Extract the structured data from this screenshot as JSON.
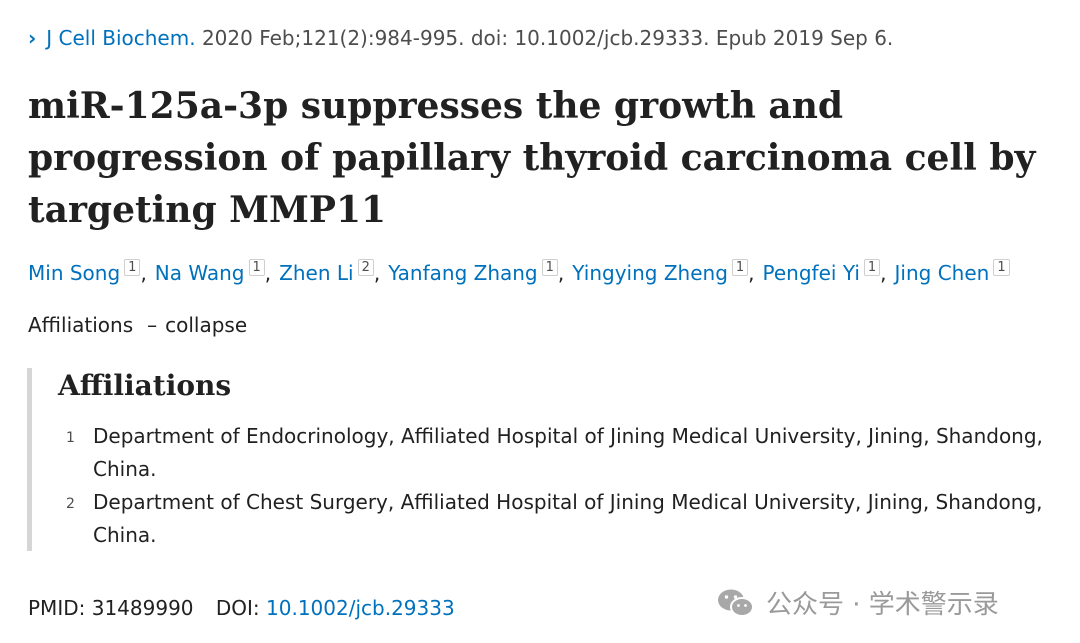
{
  "citation": {
    "journal": "J Cell Biochem.",
    "details": "2020 Feb;121(2):984-995. doi: 10.1002/jcb.29333. Epub 2019 Sep 6."
  },
  "title": "miR-125a-3p suppresses the growth and progression of papillary thyroid carcinoma cell by targeting MMP11",
  "authors": [
    {
      "name": "Min Song",
      "aff": "1"
    },
    {
      "name": "Na Wang",
      "aff": "1"
    },
    {
      "name": "Zhen Li",
      "aff": "2"
    },
    {
      "name": "Yanfang Zhang",
      "aff": "1"
    },
    {
      "name": "Yingying Zheng",
      "aff": "1"
    },
    {
      "name": "Pengfei Yi",
      "aff": "1"
    },
    {
      "name": "Jing Chen",
      "aff": "1"
    }
  ],
  "affiliations_toggle": {
    "label": "Affiliations",
    "dash": "–",
    "action": "collapse"
  },
  "affiliations": {
    "heading": "Affiliations",
    "items": [
      {
        "num": "1",
        "text": "Department of Endocrinology, Affiliated Hospital of Jining Medical University, Jining, Shandong, China."
      },
      {
        "num": "2",
        "text": "Department of Chest Surgery, Affiliated Hospital of Jining Medical University, Jining, Shandong, China."
      }
    ]
  },
  "identifiers": {
    "pmid_label": "PMID:",
    "pmid": "31489990",
    "doi_label": "DOI:",
    "doi": "10.1002/jcb.29333"
  },
  "watermark": {
    "text": "公众号 · 学术警示录",
    "icon": "wechat-icon"
  },
  "colors": {
    "link": "#0071bc",
    "text": "#212121",
    "muted": "#4d4d4d"
  }
}
